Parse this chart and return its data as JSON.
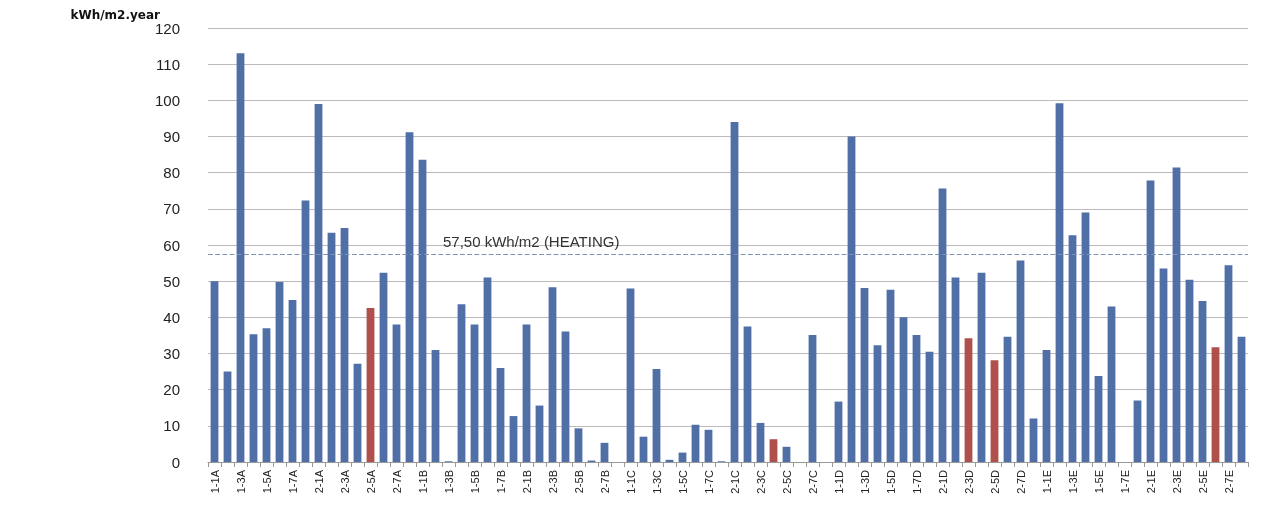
{
  "chart_data": {
    "type": "bar",
    "ylabel": "kWh/m2.year",
    "categories": [
      "1-1A",
      null,
      "1-3A",
      null,
      "1-5A",
      null,
      "1-7A",
      null,
      "2-1A",
      null,
      "2-3A",
      null,
      "2-5A",
      null,
      "2-7A",
      null,
      "1-1B",
      null,
      "1-3B",
      null,
      "1-5B",
      null,
      "1-7B",
      null,
      "2-1B",
      null,
      "2-3B",
      null,
      "2-5B",
      null,
      "2-7B",
      null,
      "1-1C",
      null,
      "1-3C",
      null,
      "1-5C",
      null,
      "1-7C",
      null,
      "2-1C",
      null,
      "2-3C",
      null,
      "2-5C",
      null,
      "2-7C",
      null,
      "1-1D",
      null,
      "1-3D",
      null,
      "1-5D",
      null,
      "1-7D",
      null,
      "2-1D",
      null,
      "2-3D",
      null,
      "2-5D",
      null,
      "2-7D",
      null,
      "1-1E",
      null,
      "1-3E",
      null,
      "1-5E",
      null,
      "1-7E",
      null,
      "2-1E",
      null,
      "2-3E",
      null,
      "2-5E",
      null,
      "2-7E",
      null
    ],
    "values": [
      50,
      25,
      113,
      35.3,
      37,
      49.8,
      44.8,
      72.3,
      99,
      63.4,
      64.7,
      27.2,
      42.6,
      52.3,
      38,
      91.2,
      83.6,
      31,
      0.2,
      43.6,
      38,
      51,
      26,
      12.7,
      38,
      15.6,
      48.3,
      36.1,
      9.3,
      0.4,
      5.3,
      null,
      48,
      7,
      25.7,
      0.6,
      2.6,
      10.3,
      8.9,
      0.2,
      94,
      37.5,
      10.8,
      6.3,
      4.2,
      null,
      35.1,
      null,
      16.7,
      90,
      48.1,
      32.3,
      47.6,
      40,
      35.1,
      30.5,
      75.6,
      51,
      34.2,
      52.3,
      28.1,
      34.6,
      55.7,
      12,
      31,
      99.2,
      62.7,
      69,
      23.8,
      43,
      null,
      17,
      77.8,
      53.5,
      81.4,
      50.4,
      44.5,
      31.7,
      54.4,
      34.6
    ],
    "colors": [
      "#4f6fa6",
      "#4f6fa6",
      "#4f6fa6",
      "#4f6fa6",
      "#4f6fa6",
      "#4f6fa6",
      "#4f6fa6",
      "#4f6fa6",
      "#4f6fa6",
      "#4f6fa6",
      "#4f6fa6",
      "#4f6fa6",
      "#b0504c",
      "#4f6fa6",
      "#4f6fa6",
      "#4f6fa6",
      "#4f6fa6",
      "#4f6fa6",
      "#4f6fa6",
      "#4f6fa6",
      "#4f6fa6",
      "#4f6fa6",
      "#4f6fa6",
      "#4f6fa6",
      "#4f6fa6",
      "#4f6fa6",
      "#4f6fa6",
      "#4f6fa6",
      "#4f6fa6",
      "#4f6fa6",
      "#4f6fa6",
      "#4f6fa6",
      "#4f6fa6",
      "#4f6fa6",
      "#4f6fa6",
      "#4f6fa6",
      "#4f6fa6",
      "#4f6fa6",
      "#4f6fa6",
      "#4f6fa6",
      "#4f6fa6",
      "#4f6fa6",
      "#4f6fa6",
      "#b0504c",
      "#4f6fa6",
      "#4f6fa6",
      "#4f6fa6",
      "#4f6fa6",
      "#4f6fa6",
      "#4f6fa6",
      "#4f6fa6",
      "#4f6fa6",
      "#4f6fa6",
      "#4f6fa6",
      "#4f6fa6",
      "#4f6fa6",
      "#4f6fa6",
      "#4f6fa6",
      "#b0504c",
      "#4f6fa6",
      "#b0504c",
      "#4f6fa6",
      "#4f6fa6",
      "#4f6fa6",
      "#4f6fa6",
      "#4f6fa6",
      "#4f6fa6",
      "#4f6fa6",
      "#4f6fa6",
      "#4f6fa6",
      "#4f6fa6",
      "#4f6fa6",
      "#4f6fa6",
      "#4f6fa6",
      "#4f6fa6",
      "#4f6fa6",
      "#4f6fa6",
      "#b0504c",
      "#4f6fa6",
      "#4f6fa6"
    ],
    "ylim": [
      0,
      120
    ],
    "yticks": [
      0,
      10,
      20,
      30,
      40,
      50,
      60,
      70,
      80,
      90,
      100,
      110,
      120
    ],
    "grid": "y",
    "ref_lines": [
      {
        "axis": "y",
        "value": 57.5,
        "label": "57,50 kWh/m2 (HEATING)",
        "color": "#7f8fb8",
        "line_style": "dashed"
      }
    ]
  }
}
